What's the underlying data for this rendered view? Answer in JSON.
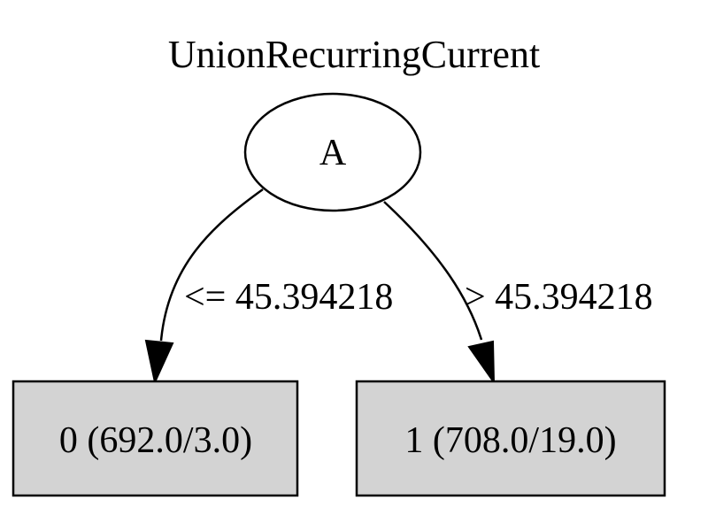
{
  "title": "UnionRecurringCurrent",
  "colors": {
    "background": "#ffffff",
    "stroke": "#000000",
    "leaf_fill": "#d3d3d3"
  },
  "tree": {
    "root": {
      "label": "A",
      "shape": "ellipse"
    },
    "edges": [
      {
        "label": "<= 45.394218",
        "target": "left_leaf"
      },
      {
        "label": "> 45.394218",
        "target": "right_leaf"
      }
    ],
    "leaves": {
      "left_leaf": {
        "label": "0 (692.0/3.0)",
        "shape": "box"
      },
      "right_leaf": {
        "label": "1 (708.0/19.0)",
        "shape": "box"
      }
    }
  }
}
